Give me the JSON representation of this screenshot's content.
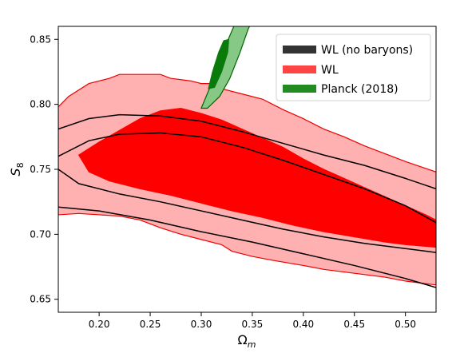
{
  "chart_data": {
    "type": "contour",
    "xlabel": "Ω",
    "xlabel_subscript": "m",
    "ylabel": "S",
    "ylabel_subscript": "8",
    "xlim": [
      0.16,
      0.53
    ],
    "ylim": [
      0.64,
      0.86
    ],
    "x_ticks": [
      0.2,
      0.25,
      0.3,
      0.35,
      0.4,
      0.45,
      0.5
    ],
    "x_tick_labels": [
      "0.20",
      "0.25",
      "0.30",
      "0.35",
      "0.40",
      "0.45",
      "0.50"
    ],
    "y_ticks": [
      0.65,
      0.7,
      0.75,
      0.8,
      0.85
    ],
    "y_tick_labels": [
      "0.65",
      "0.70",
      "0.75",
      "0.80",
      "0.85"
    ],
    "grid": false,
    "legend_position": "top-right",
    "series": [
      {
        "name": "WL (no baryons)",
        "legend_color": "#333333",
        "style": "line-contours",
        "line_color": "#000000",
        "contours": [
          {
            "level": "outer",
            "upper": [
              [
                0.16,
                0.781
              ],
              [
                0.19,
                0.789
              ],
              [
                0.22,
                0.792
              ],
              [
                0.26,
                0.791
              ],
              [
                0.3,
                0.787
              ],
              [
                0.34,
                0.779
              ],
              [
                0.38,
                0.77
              ],
              [
                0.42,
                0.761
              ],
              [
                0.46,
                0.753
              ],
              [
                0.5,
                0.743
              ],
              [
                0.53,
                0.735
              ]
            ],
            "lower": [
              [
                0.16,
                0.721
              ],
              [
                0.2,
                0.718
              ],
              [
                0.25,
                0.711
              ],
              [
                0.3,
                0.702
              ],
              [
                0.35,
                0.694
              ],
              [
                0.4,
                0.685
              ],
              [
                0.45,
                0.676
              ],
              [
                0.5,
                0.666
              ],
              [
                0.53,
                0.659
              ]
            ]
          },
          {
            "level": "inner",
            "upper": [
              [
                0.16,
                0.76
              ],
              [
                0.19,
                0.772
              ],
              [
                0.22,
                0.777
              ],
              [
                0.26,
                0.778
              ],
              [
                0.3,
                0.775
              ],
              [
                0.34,
                0.767
              ],
              [
                0.38,
                0.757
              ],
              [
                0.42,
                0.746
              ],
              [
                0.46,
                0.735
              ],
              [
                0.5,
                0.722
              ],
              [
                0.53,
                0.709
              ]
            ],
            "lower": [
              [
                0.16,
                0.75
              ],
              [
                0.18,
                0.739
              ],
              [
                0.22,
                0.731
              ],
              [
                0.26,
                0.725
              ],
              [
                0.3,
                0.718
              ],
              [
                0.34,
                0.711
              ],
              [
                0.38,
                0.704
              ],
              [
                0.42,
                0.698
              ],
              [
                0.46,
                0.693
              ],
              [
                0.5,
                0.689
              ],
              [
                0.53,
                0.686
              ]
            ]
          }
        ]
      },
      {
        "name": "WL",
        "legend_color": "#ff4444",
        "style": "filled-contours",
        "outer_fill": "#ffb0b0",
        "inner_fill": "#ff0000",
        "edge_color": "#ee0000",
        "contours": [
          {
            "level": "outer",
            "upper": [
              [
                0.16,
                0.798
              ],
              [
                0.17,
                0.806
              ],
              [
                0.19,
                0.816
              ],
              [
                0.21,
                0.82
              ],
              [
                0.22,
                0.823
              ],
              [
                0.26,
                0.823
              ],
              [
                0.27,
                0.82
              ],
              [
                0.29,
                0.818
              ],
              [
                0.3,
                0.816
              ],
              [
                0.31,
                0.816
              ],
              [
                0.32,
                0.812
              ],
              [
                0.34,
                0.808
              ],
              [
                0.36,
                0.804
              ],
              [
                0.38,
                0.796
              ],
              [
                0.4,
                0.789
              ],
              [
                0.42,
                0.781
              ],
              [
                0.44,
                0.775
              ],
              [
                0.46,
                0.768
              ],
              [
                0.48,
                0.762
              ],
              [
                0.5,
                0.756
              ],
              [
                0.53,
                0.748
              ]
            ],
            "lower": [
              [
                0.16,
                0.715
              ],
              [
                0.18,
                0.716
              ],
              [
                0.2,
                0.715
              ],
              [
                0.22,
                0.714
              ],
              [
                0.24,
                0.711
              ],
              [
                0.26,
                0.705
              ],
              [
                0.28,
                0.7
              ],
              [
                0.3,
                0.696
              ],
              [
                0.32,
                0.692
              ],
              [
                0.33,
                0.687
              ],
              [
                0.35,
                0.683
              ],
              [
                0.37,
                0.68
              ],
              [
                0.4,
                0.676
              ],
              [
                0.42,
                0.673
              ],
              [
                0.45,
                0.67
              ],
              [
                0.48,
                0.667
              ],
              [
                0.5,
                0.664
              ],
              [
                0.53,
                0.661
              ]
            ]
          },
          {
            "level": "inner",
            "upper": [
              [
                0.18,
                0.761
              ],
              [
                0.2,
                0.771
              ],
              [
                0.22,
                0.78
              ],
              [
                0.24,
                0.789
              ],
              [
                0.26,
                0.795
              ],
              [
                0.28,
                0.797
              ],
              [
                0.3,
                0.793
              ],
              [
                0.32,
                0.788
              ],
              [
                0.34,
                0.781
              ],
              [
                0.36,
                0.774
              ],
              [
                0.38,
                0.767
              ],
              [
                0.4,
                0.758
              ],
              [
                0.42,
                0.75
              ],
              [
                0.44,
                0.743
              ],
              [
                0.46,
                0.736
              ],
              [
                0.48,
                0.729
              ],
              [
                0.5,
                0.722
              ],
              [
                0.52,
                0.715
              ],
              [
                0.53,
                0.711
              ]
            ],
            "lower": [
              [
                0.18,
                0.761
              ],
              [
                0.19,
                0.748
              ],
              [
                0.21,
                0.741
              ],
              [
                0.24,
                0.735
              ],
              [
                0.27,
                0.73
              ],
              [
                0.3,
                0.724
              ],
              [
                0.33,
                0.718
              ],
              [
                0.36,
                0.713
              ],
              [
                0.39,
                0.707
              ],
              [
                0.42,
                0.702
              ],
              [
                0.45,
                0.698
              ],
              [
                0.48,
                0.694
              ],
              [
                0.5,
                0.692
              ],
              [
                0.53,
                0.69
              ]
            ]
          }
        ]
      },
      {
        "name": "Planck (2018)",
        "legend_color": "#228b22",
        "style": "filled-contours",
        "outer_fill": "#86c986",
        "inner_fill": "#0a7a0a",
        "edge_color": "#006400",
        "contours": [
          {
            "level": "outer",
            "points": [
              [
                0.3,
                0.797
              ],
              [
                0.308,
                0.812
              ],
              [
                0.318,
                0.833
              ],
              [
                0.327,
                0.851
              ],
              [
                0.333,
                0.862
              ],
              [
                0.346,
                0.868
              ],
              [
                0.352,
                0.867
              ],
              [
                0.346,
                0.858
              ],
              [
                0.338,
                0.84
              ],
              [
                0.328,
                0.82
              ],
              [
                0.318,
                0.806
              ],
              [
                0.306,
                0.797
              ]
            ]
          },
          {
            "level": "inner",
            "points": [
              [
                0.307,
                0.812
              ],
              [
                0.311,
                0.825
              ],
              [
                0.317,
                0.84
              ],
              [
                0.322,
                0.849
              ],
              [
                0.327,
                0.85
              ],
              [
                0.326,
                0.84
              ],
              [
                0.32,
                0.825
              ],
              [
                0.313,
                0.813
              ]
            ]
          }
        ]
      }
    ]
  }
}
